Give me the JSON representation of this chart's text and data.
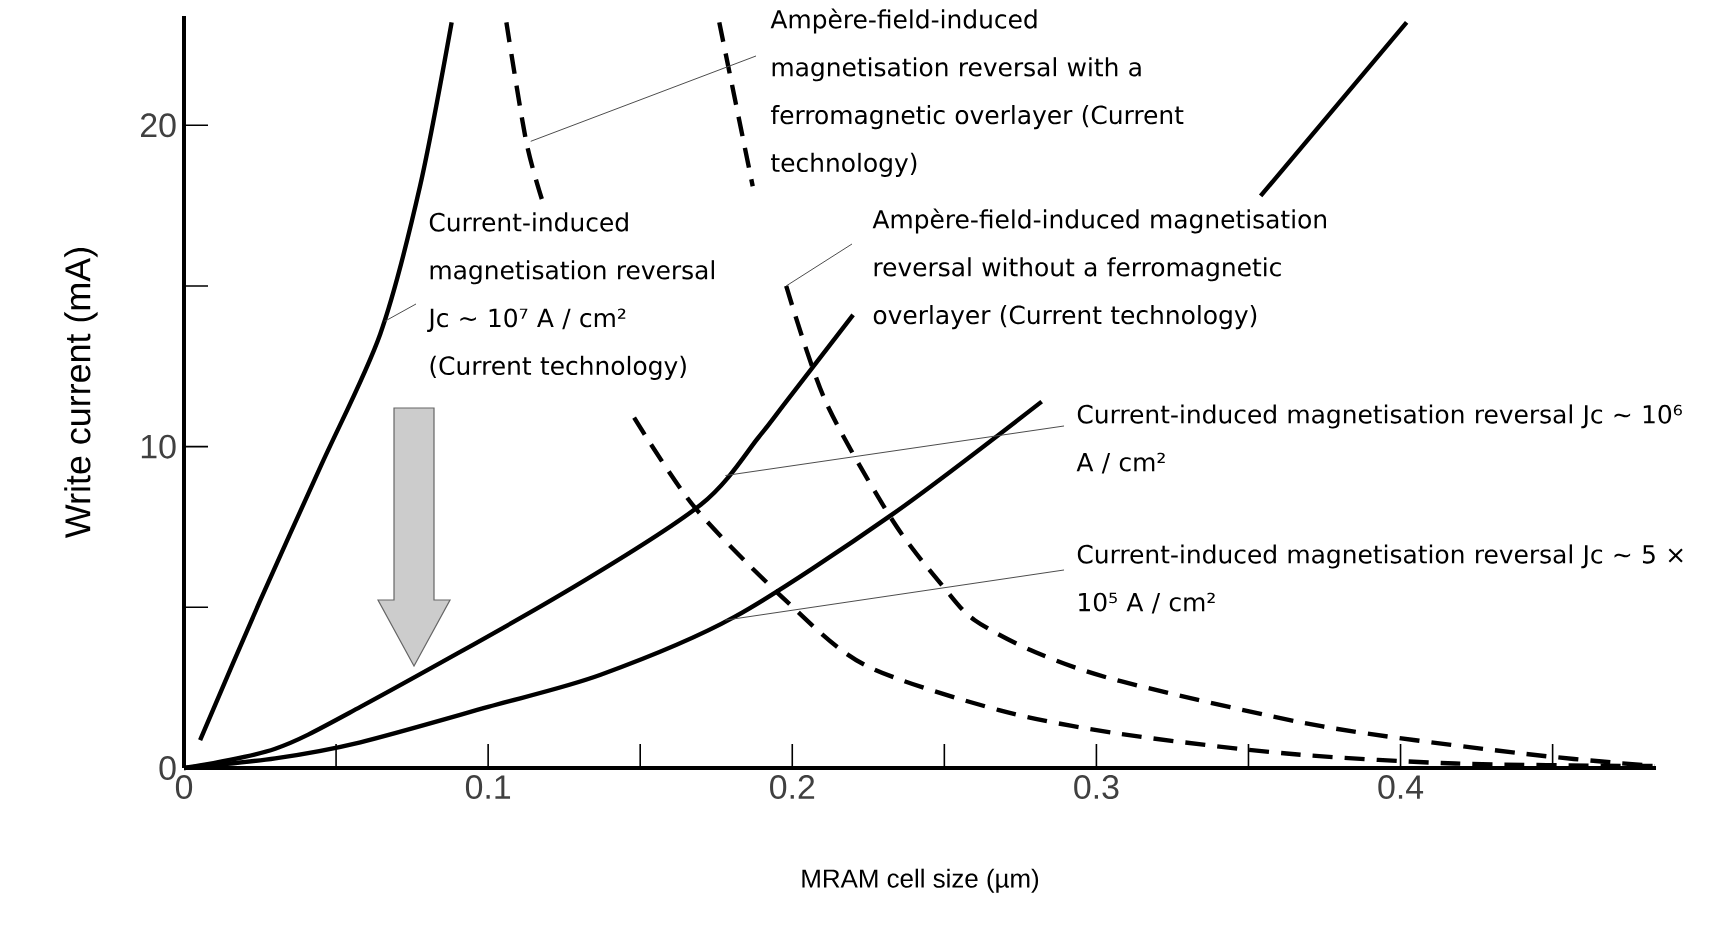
{
  "chart_data": {
    "type": "line",
    "xlabel": "MRAM cell size (µm)",
    "ylabel": "Write current (mA)",
    "xlim": [
      0,
      0.484
    ],
    "ylim": [
      0,
      23.4
    ],
    "xticks": [
      0,
      {
        "value": 0.05,
        "label": null
      },
      0.1,
      {
        "value": 0.15,
        "label": null
      },
      0.2,
      {
        "value": 0.25,
        "label": null
      },
      0.3,
      {
        "value": 0.35,
        "label": null
      },
      0.4,
      {
        "value": 0.45,
        "label": null
      }
    ],
    "yticks": [
      0,
      {
        "value": 5,
        "label": null
      },
      10,
      {
        "value": 15,
        "label": null
      },
      20
    ],
    "grid": false,
    "marker": "none",
    "series": [
      {
        "color": "#000000",
        "line_style": "solid",
        "x": [
          0.0053,
          0.025,
          0.045,
          0.0645,
          0.0776,
          0.088
        ],
        "values": [
          0.87,
          5.2,
          9.4,
          13.5,
          18.1,
          23.2
        ]
      },
      {
        "color": "#000000",
        "line_style": "solid",
        "x": [
          0,
          0.03,
          0.058,
          0.124,
          0.17,
          0.189,
          0.198,
          0.22
        ],
        "values": [
          0,
          0.6,
          1.9,
          5.4,
          8.2,
          10.3,
          11.4,
          14.1
        ]
      },
      {
        "color": "#000000",
        "line_style": "solid",
        "x": [
          0,
          0.03,
          0.058,
          0.1,
          0.137,
          0.181,
          0.233,
          0.282,
          0.32,
          0.354,
          0.402
        ],
        "values": [
          0,
          0.3,
          0.8,
          1.9,
          2.9,
          4.7,
          7.9,
          11.4,
          null,
          17.8,
          23.2
        ]
      },
      {
        "color": "#000000",
        "line_style": "dashed",
        "x": [
          0.106,
          0.1125,
          0.118,
          0.133,
          0.148,
          0.168,
          0.198,
          0.224,
          0.268,
          0.308,
          0.3625,
          0.418,
          0.4835
        ],
        "values": [
          23.2,
          19.5,
          17.6,
          null,
          10.9,
          8.1,
          5.2,
          3.2,
          1.8,
          1.06,
          0.45,
          0.14,
          0.06
        ]
      },
      {
        "color": "#000000",
        "line_style": "dashed",
        "x": [
          0.176,
          0.187,
          0.192,
          0.198,
          0.211,
          0.233,
          0.25,
          0.26,
          0.28,
          0.308,
          0.374,
          0.44,
          0.4835
        ],
        "values": [
          23.2,
          18.1,
          null,
          15.0,
          11.4,
          7.7,
          5.6,
          4.6,
          3.6,
          2.7,
          1.3,
          0.45,
          0.06
        ]
      }
    ],
    "annotations": [
      {
        "text": "Ampère-field-induced magnetisation reversal with a ferromagnetic overlayer (Current technology)",
        "x": 0.114,
        "y": 19.5
      },
      {
        "text": "Current-induced magnetisation reversal Jc ~ 10⁷ A / cm² (Current technology)",
        "x": 0.066,
        "y": 13.9
      },
      {
        "text": "Ampère-field-induced magnetisation reversal without a ferromagnetic overlayer (Current technology)",
        "x": 0.198,
        "y": 15.0
      },
      {
        "text": "Current-induced magnetisation reversal Jc ~ 10⁶ A / cm²",
        "x": 0.178,
        "y": 9.1
      },
      {
        "text": "Current-induced magnetisation reversal Jc ~ 5 × 10⁵ A / cm²",
        "x": 0.178,
        "y": 4.6
      }
    ]
  }
}
